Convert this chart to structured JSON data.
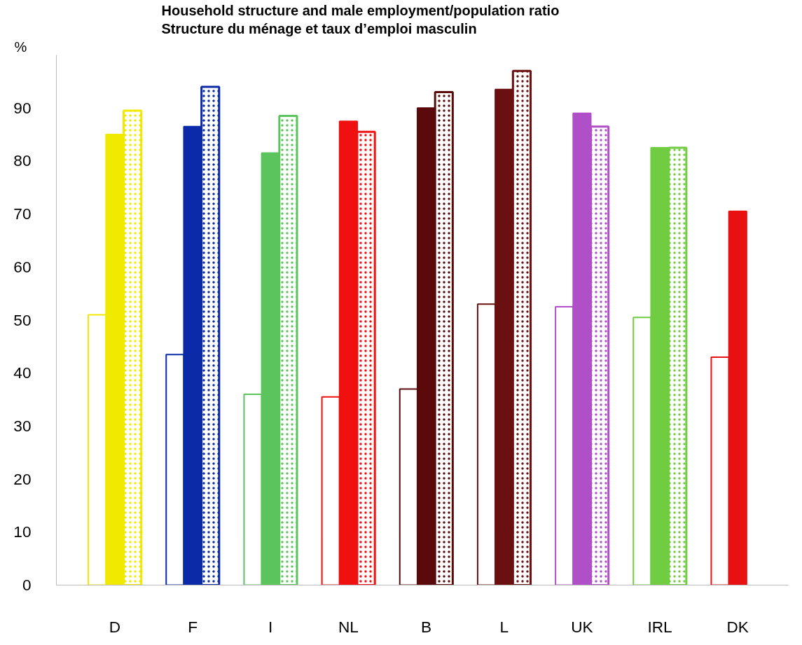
{
  "chart_data": {
    "type": "bar",
    "title": "Household structure and male employment/population ratio",
    "subtitle": "Structure du ménage et taux d’emploi masculin",
    "ylabel": "%",
    "categories": [
      "D",
      "F",
      "I",
      "NL",
      "B",
      "L",
      "UK",
      "IRL",
      "DK"
    ],
    "series": [
      {
        "colors": [
          "#f0ea00",
          "#0a2aa8",
          "#5cc45c",
          "#f01010",
          "#5a0a0a",
          "#6a1010",
          "#b050c8",
          "#70cc40",
          "#e81010"
        ],
        "values": [
          51,
          43.5,
          36,
          35.5,
          37,
          53,
          52.5,
          50.5,
          43
        ]
      },
      {
        "colors": [
          "#f0ea00",
          "#0a2aa8",
          "#5cc45c",
          "#f01010",
          "#5a0a0a",
          "#6a1010",
          "#b050c8",
          "#70cc40",
          "#e81010"
        ],
        "values": [
          85,
          86.5,
          81.5,
          87.5,
          90,
          93.5,
          89,
          82.5,
          70.5
        ]
      },
      {
        "colors": [
          "#f0ea00",
          "#0a2aa8",
          "#5cc45c",
          "#f01010",
          "#5a0a0a",
          "#6a1010",
          "#b050c8",
          "#70cc40",
          "#e81010"
        ],
        "values": [
          89.5,
          94,
          88.5,
          85.5,
          93,
          97,
          86.5,
          82.5,
          null
        ]
      }
    ],
    "ylim": [
      0,
      100
    ],
    "yticks": [
      0,
      10,
      20,
      30,
      40,
      50,
      60,
      70,
      80,
      90
    ],
    "grid": false
  }
}
